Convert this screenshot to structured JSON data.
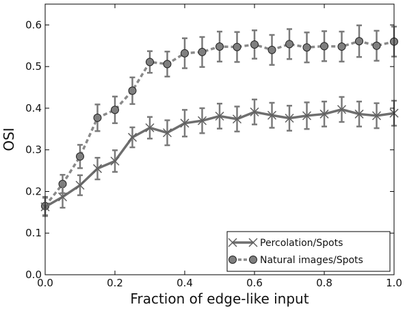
{
  "chart_data": {
    "type": "line",
    "title": "",
    "xlabel": "Fraction of edge-like input",
    "ylabel": "OSI",
    "xlim": [
      0.0,
      1.0
    ],
    "ylim": [
      0.0,
      0.65
    ],
    "xticks": [
      0.0,
      0.2,
      0.4,
      0.6,
      0.8,
      1.0
    ],
    "xtick_labels": [
      "0.0",
      "0.2",
      "0.4",
      "0.6",
      "0.8",
      "1.0"
    ],
    "yticks": [
      0.0,
      0.1,
      0.2,
      0.3,
      0.4,
      0.5,
      0.6
    ],
    "ytick_labels": [
      "0.0",
      "0.1",
      "0.2",
      "0.3",
      "0.4",
      "0.5",
      "0.6"
    ],
    "grid": false,
    "legend_position": "lower-right",
    "x": [
      0.0,
      0.05,
      0.1,
      0.15,
      0.2,
      0.25,
      0.3,
      0.35,
      0.4,
      0.45,
      0.5,
      0.55,
      0.6,
      0.65,
      0.7,
      0.75,
      0.8,
      0.85,
      0.9,
      0.95,
      1.0
    ],
    "series": [
      {
        "name": "Percolation/Spots",
        "marker": "x",
        "linestyle": "solid",
        "color": "#6e6e6e",
        "values": [
          0.163,
          0.187,
          0.215,
          0.255,
          0.273,
          0.33,
          0.353,
          0.341,
          0.364,
          0.37,
          0.381,
          0.374,
          0.391,
          0.383,
          0.376,
          0.382,
          0.386,
          0.397,
          0.386,
          0.382,
          0.388
        ],
        "errors": [
          0.022,
          0.026,
          0.024,
          0.026,
          0.026,
          0.024,
          0.026,
          0.03,
          0.032,
          0.03,
          0.03,
          0.03,
          0.03,
          0.03,
          0.03,
          0.032,
          0.03,
          0.03,
          0.03,
          0.03,
          0.03
        ]
      },
      {
        "name": "Natural images/Spots",
        "marker": "o",
        "linestyle": "dashed",
        "color": "#8a8a8a",
        "values": [
          0.165,
          0.218,
          0.284,
          0.377,
          0.396,
          0.442,
          0.511,
          0.506,
          0.532,
          0.535,
          0.548,
          0.547,
          0.553,
          0.54,
          0.554,
          0.546,
          0.549,
          0.548,
          0.561,
          0.55,
          0.56
        ],
        "errors": [
          0.022,
          0.022,
          0.028,
          0.032,
          0.032,
          0.032,
          0.026,
          0.03,
          0.036,
          0.036,
          0.036,
          0.036,
          0.034,
          0.036,
          0.036,
          0.036,
          0.036,
          0.036,
          0.038,
          0.036,
          0.036
        ]
      }
    ]
  }
}
